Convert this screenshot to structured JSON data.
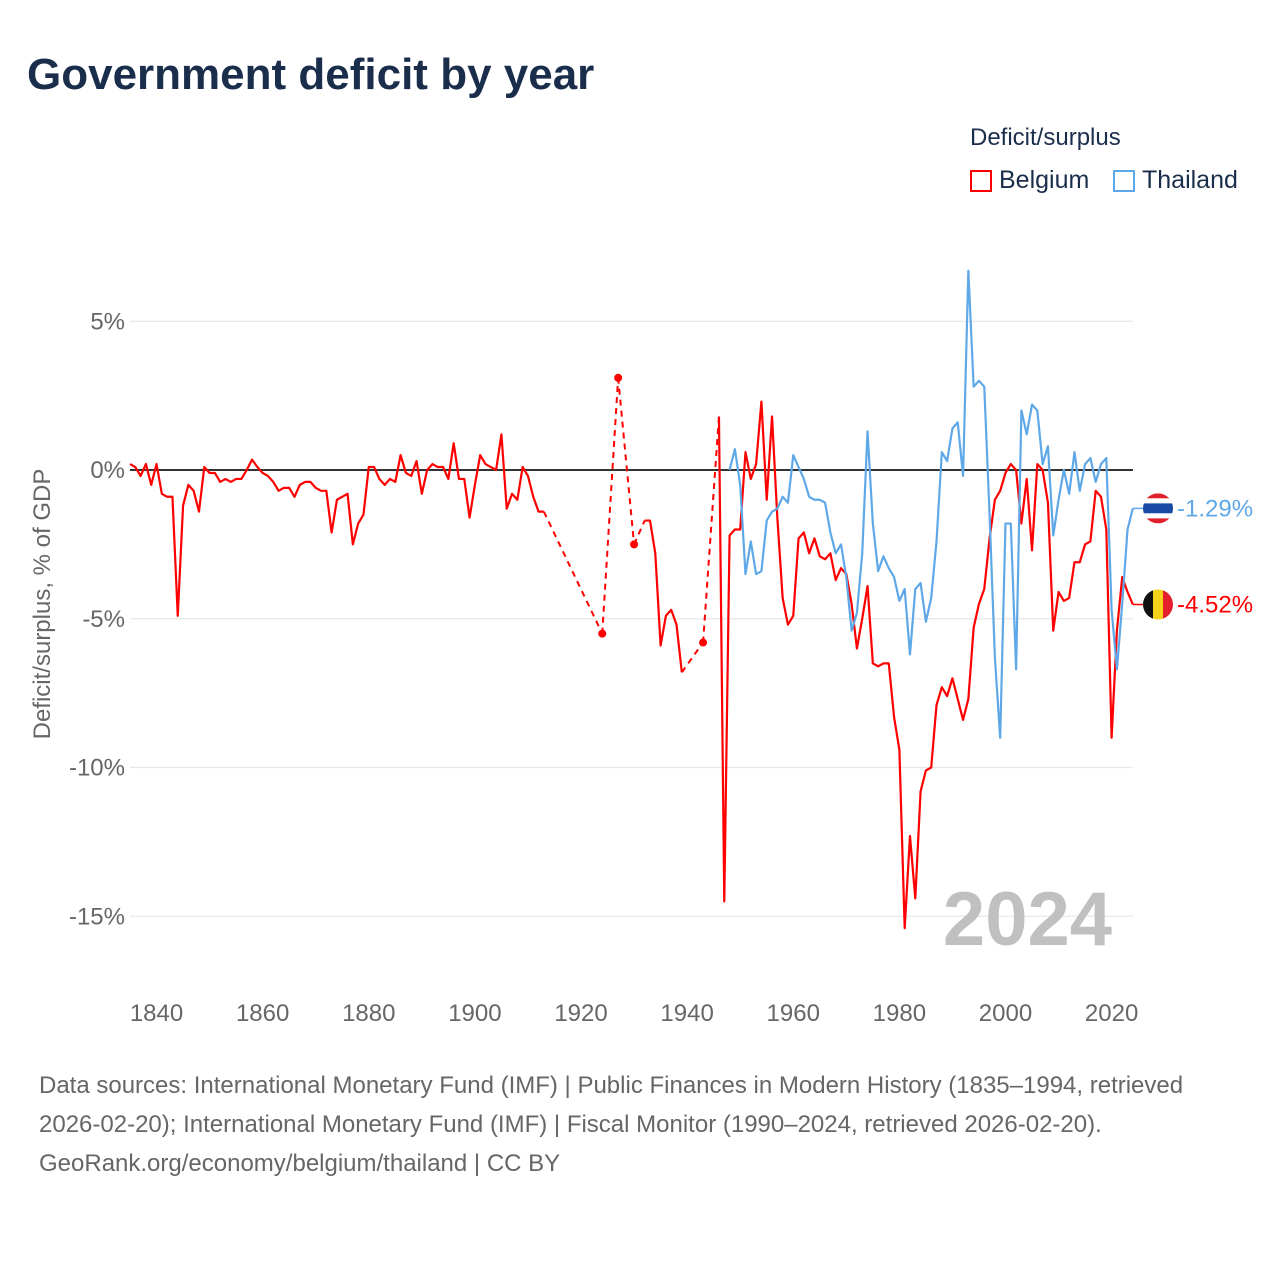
{
  "chart_data": {
    "type": "line",
    "title": "Government deficit by year",
    "ylabel": "Deficit/surplus, % of GDP",
    "xlabel": "",
    "ylim": [
      -17.5,
      7
    ],
    "xlim": [
      1835,
      2024
    ],
    "y_ticks": [
      5,
      0,
      -5,
      -10,
      -15
    ],
    "y_tick_labels": [
      "5%",
      "0%",
      "-5%",
      "-10%",
      "-15%"
    ],
    "x_ticks": [
      1840,
      1860,
      1880,
      1900,
      1920,
      1940,
      1960,
      1980,
      2000,
      2020
    ],
    "x_tick_labels": [
      "1840",
      "1860",
      "1880",
      "1900",
      "1920",
      "1940",
      "1960",
      "1980",
      "2000",
      "2020"
    ],
    "grid": true,
    "legend_title": "Deficit/surplus",
    "legend_position": "top-right",
    "year_watermark": "2024",
    "series": [
      {
        "name": "Belgium",
        "color": "#ff0000",
        "end_label": "-4.52%",
        "points": [
          [
            1835,
            0.2
          ],
          [
            1836,
            0.1
          ],
          [
            1837,
            -0.2
          ],
          [
            1838,
            0.2
          ],
          [
            1839,
            -0.5
          ],
          [
            1840,
            0.2
          ],
          [
            1841,
            -0.8
          ],
          [
            1842,
            -0.9
          ],
          [
            1843,
            -0.9
          ],
          [
            1844,
            -4.9
          ],
          [
            1845,
            -1.2
          ],
          [
            1846,
            -0.5
          ],
          [
            1847,
            -0.7
          ],
          [
            1848,
            -1.4
          ],
          [
            1849,
            0.1
          ],
          [
            1850,
            -0.1
          ],
          [
            1851,
            -0.1
          ],
          [
            1852,
            -0.4
          ],
          [
            1853,
            -0.3
          ],
          [
            1854,
            -0.4
          ],
          [
            1855,
            -0.3
          ],
          [
            1856,
            -0.3
          ],
          [
            1857,
            0.0
          ],
          [
            1858,
            0.35
          ],
          [
            1859,
            0.1
          ],
          [
            1860,
            -0.1
          ],
          [
            1861,
            -0.2
          ],
          [
            1862,
            -0.4
          ],
          [
            1863,
            -0.7
          ],
          [
            1864,
            -0.6
          ],
          [
            1865,
            -0.6
          ],
          [
            1866,
            -0.9
          ],
          [
            1867,
            -0.5
          ],
          [
            1868,
            -0.4
          ],
          [
            1869,
            -0.4
          ],
          [
            1870,
            -0.6
          ],
          [
            1871,
            -0.7
          ],
          [
            1872,
            -0.7
          ],
          [
            1873,
            -2.1
          ],
          [
            1874,
            -1.0
          ],
          [
            1875,
            -0.9
          ],
          [
            1876,
            -0.8
          ],
          [
            1877,
            -2.5
          ],
          [
            1878,
            -1.8
          ],
          [
            1879,
            -1.5
          ],
          [
            1880,
            0.1
          ],
          [
            1881,
            0.1
          ],
          [
            1882,
            -0.3
          ],
          [
            1883,
            -0.5
          ],
          [
            1884,
            -0.3
          ],
          [
            1885,
            -0.4
          ],
          [
            1886,
            0.5
          ],
          [
            1887,
            -0.1
          ],
          [
            1888,
            -0.2
          ],
          [
            1889,
            0.3
          ],
          [
            1890,
            -0.8
          ],
          [
            1891,
            0.0
          ],
          [
            1892,
            0.2
          ],
          [
            1893,
            0.1
          ],
          [
            1894,
            0.1
          ],
          [
            1895,
            -0.3
          ],
          [
            1896,
            0.9
          ],
          [
            1897,
            -0.3
          ],
          [
            1898,
            -0.3
          ],
          [
            1899,
            -1.6
          ],
          [
            1900,
            -0.5
          ],
          [
            1901,
            0.5
          ],
          [
            1902,
            0.2
          ],
          [
            1903,
            0.1
          ],
          [
            1904,
            0.0
          ],
          [
            1905,
            1.2
          ],
          [
            1906,
            -1.3
          ],
          [
            1907,
            -0.8
          ],
          [
            1908,
            -1.0
          ],
          [
            1909,
            0.1
          ],
          [
            1910,
            -0.2
          ],
          [
            1911,
            -0.9
          ],
          [
            1912,
            -1.4
          ],
          [
            1913,
            -1.4
          ],
          [
            1924,
            -5.5
          ],
          [
            1927,
            3.1
          ],
          [
            1930,
            -2.5
          ],
          [
            1932,
            -1.7
          ],
          [
            1933,
            -1.7
          ],
          [
            1934,
            -2.8
          ],
          [
            1935,
            -5.9
          ],
          [
            1936,
            -4.9
          ],
          [
            1937,
            -4.7
          ],
          [
            1938,
            -5.2
          ],
          [
            1939,
            -6.8
          ],
          [
            1943,
            -5.8
          ],
          [
            1946,
            1.8
          ],
          [
            1947,
            -14.5
          ],
          [
            1948,
            -2.2
          ],
          [
            1949,
            -2.0
          ],
          [
            1950,
            -2.0
          ],
          [
            1951,
            0.6
          ],
          [
            1952,
            -0.3
          ],
          [
            1953,
            0.2
          ],
          [
            1954,
            2.3
          ],
          [
            1955,
            -1.0
          ],
          [
            1956,
            1.8
          ],
          [
            1957,
            -1.6
          ],
          [
            1958,
            -4.3
          ],
          [
            1959,
            -5.2
          ],
          [
            1960,
            -4.9
          ],
          [
            1961,
            -2.3
          ],
          [
            1962,
            -2.1
          ],
          [
            1963,
            -2.8
          ],
          [
            1964,
            -2.3
          ],
          [
            1965,
            -2.9
          ],
          [
            1966,
            -3.0
          ],
          [
            1967,
            -2.8
          ],
          [
            1968,
            -3.7
          ],
          [
            1969,
            -3.3
          ],
          [
            1970,
            -3.5
          ],
          [
            1971,
            -4.5
          ],
          [
            1972,
            -6.0
          ],
          [
            1973,
            -5.0
          ],
          [
            1974,
            -3.9
          ],
          [
            1975,
            -6.5
          ],
          [
            1976,
            -6.6
          ],
          [
            1977,
            -6.5
          ],
          [
            1978,
            -6.5
          ],
          [
            1979,
            -8.3
          ],
          [
            1980,
            -9.4
          ],
          [
            1981,
            -15.4
          ],
          [
            1982,
            -12.3
          ],
          [
            1983,
            -14.4
          ],
          [
            1984,
            -10.8
          ],
          [
            1985,
            -10.1
          ],
          [
            1986,
            -10.0
          ],
          [
            1987,
            -7.9
          ],
          [
            1988,
            -7.3
          ],
          [
            1989,
            -7.6
          ],
          [
            1990,
            -7.0
          ],
          [
            1991,
            -7.7
          ],
          [
            1992,
            -8.4
          ],
          [
            1993,
            -7.7
          ],
          [
            1994,
            -5.3
          ],
          [
            1995,
            -4.5
          ],
          [
            1996,
            -4.0
          ],
          [
            1997,
            -2.3
          ],
          [
            1998,
            -1.0
          ],
          [
            1999,
            -0.7
          ],
          [
            2000,
            -0.1
          ],
          [
            2001,
            0.2
          ],
          [
            2002,
            0.0
          ],
          [
            2003,
            -1.8
          ],
          [
            2004,
            -0.3
          ],
          [
            2005,
            -2.7
          ],
          [
            2006,
            0.2
          ],
          [
            2007,
            0.0
          ],
          [
            2008,
            -1.1
          ],
          [
            2009,
            -5.4
          ],
          [
            2010,
            -4.1
          ],
          [
            2011,
            -4.4
          ],
          [
            2012,
            -4.3
          ],
          [
            2013,
            -3.1
          ],
          [
            2014,
            -3.1
          ],
          [
            2015,
            -2.5
          ],
          [
            2016,
            -2.4
          ],
          [
            2017,
            -0.7
          ],
          [
            2018,
            -0.9
          ],
          [
            2019,
            -2.0
          ],
          [
            2020,
            -9.0
          ],
          [
            2021,
            -5.4
          ],
          [
            2022,
            -3.6
          ],
          [
            2023,
            -4.1
          ],
          [
            2024,
            -4.52
          ]
        ]
      },
      {
        "name": "Thailand",
        "color": "#5fa8e8",
        "end_label": "-1.29%",
        "points": [
          [
            1948,
            0.0
          ],
          [
            1949,
            0.7
          ],
          [
            1950,
            -0.5
          ],
          [
            1951,
            -3.5
          ],
          [
            1952,
            -2.4
          ],
          [
            1953,
            -3.5
          ],
          [
            1954,
            -3.4
          ],
          [
            1955,
            -1.7
          ],
          [
            1956,
            -1.4
          ],
          [
            1957,
            -1.3
          ],
          [
            1958,
            -0.9
          ],
          [
            1959,
            -1.1
          ],
          [
            1960,
            0.5
          ],
          [
            1961,
            0.1
          ],
          [
            1962,
            -0.3
          ],
          [
            1963,
            -0.9
          ],
          [
            1964,
            -1.0
          ],
          [
            1965,
            -1.0
          ],
          [
            1966,
            -1.1
          ],
          [
            1967,
            -2.1
          ],
          [
            1968,
            -2.8
          ],
          [
            1969,
            -2.5
          ],
          [
            1970,
            -3.6
          ],
          [
            1971,
            -5.4
          ],
          [
            1972,
            -4.8
          ],
          [
            1973,
            -2.8
          ],
          [
            1974,
            1.3
          ],
          [
            1975,
            -1.8
          ],
          [
            1976,
            -3.4
          ],
          [
            1977,
            -2.9
          ],
          [
            1978,
            -3.3
          ],
          [
            1979,
            -3.6
          ],
          [
            1980,
            -4.4
          ],
          [
            1981,
            -4.0
          ],
          [
            1982,
            -6.2
          ],
          [
            1983,
            -4.0
          ],
          [
            1984,
            -3.8
          ],
          [
            1985,
            -5.1
          ],
          [
            1986,
            -4.3
          ],
          [
            1987,
            -2.4
          ],
          [
            1988,
            0.6
          ],
          [
            1989,
            0.3
          ],
          [
            1990,
            1.4
          ],
          [
            1991,
            1.6
          ],
          [
            1992,
            -0.2
          ],
          [
            1993,
            6.7
          ],
          [
            1994,
            2.8
          ],
          [
            1995,
            3.0
          ],
          [
            1996,
            2.8
          ],
          [
            1997,
            -1.5
          ],
          [
            1998,
            -6.3
          ],
          [
            1999,
            -9.0
          ],
          [
            2000,
            -1.8
          ],
          [
            2001,
            -1.8
          ],
          [
            2002,
            -6.7
          ],
          [
            2003,
            2.0
          ],
          [
            2004,
            1.2
          ],
          [
            2005,
            2.2
          ],
          [
            2006,
            2.0
          ],
          [
            2007,
            0.2
          ],
          [
            2008,
            0.8
          ],
          [
            2009,
            -2.2
          ],
          [
            2010,
            -1.0
          ],
          [
            2011,
            0.0
          ],
          [
            2012,
            -0.8
          ],
          [
            2013,
            0.6
          ],
          [
            2014,
            -0.7
          ],
          [
            2015,
            0.2
          ],
          [
            2016,
            0.4
          ],
          [
            2017,
            -0.4
          ],
          [
            2018,
            0.2
          ],
          [
            2019,
            0.4
          ],
          [
            2020,
            -4.7
          ],
          [
            2021,
            -6.7
          ],
          [
            2022,
            -4.5
          ],
          [
            2023,
            -2.0
          ],
          [
            2024,
            -1.29
          ]
        ]
      }
    ]
  },
  "footer": {
    "sources": "Data sources: International Monetary Fund (IMF) | Public Finances in Modern History (1835–1994, retrieved 2026-02-20); International Monetary Fund (IMF) | Fiscal Monitor (1990–2024, retrieved 2026-02-20).",
    "credit": "GeoRank.org/economy/belgium/thailand | CC BY"
  }
}
